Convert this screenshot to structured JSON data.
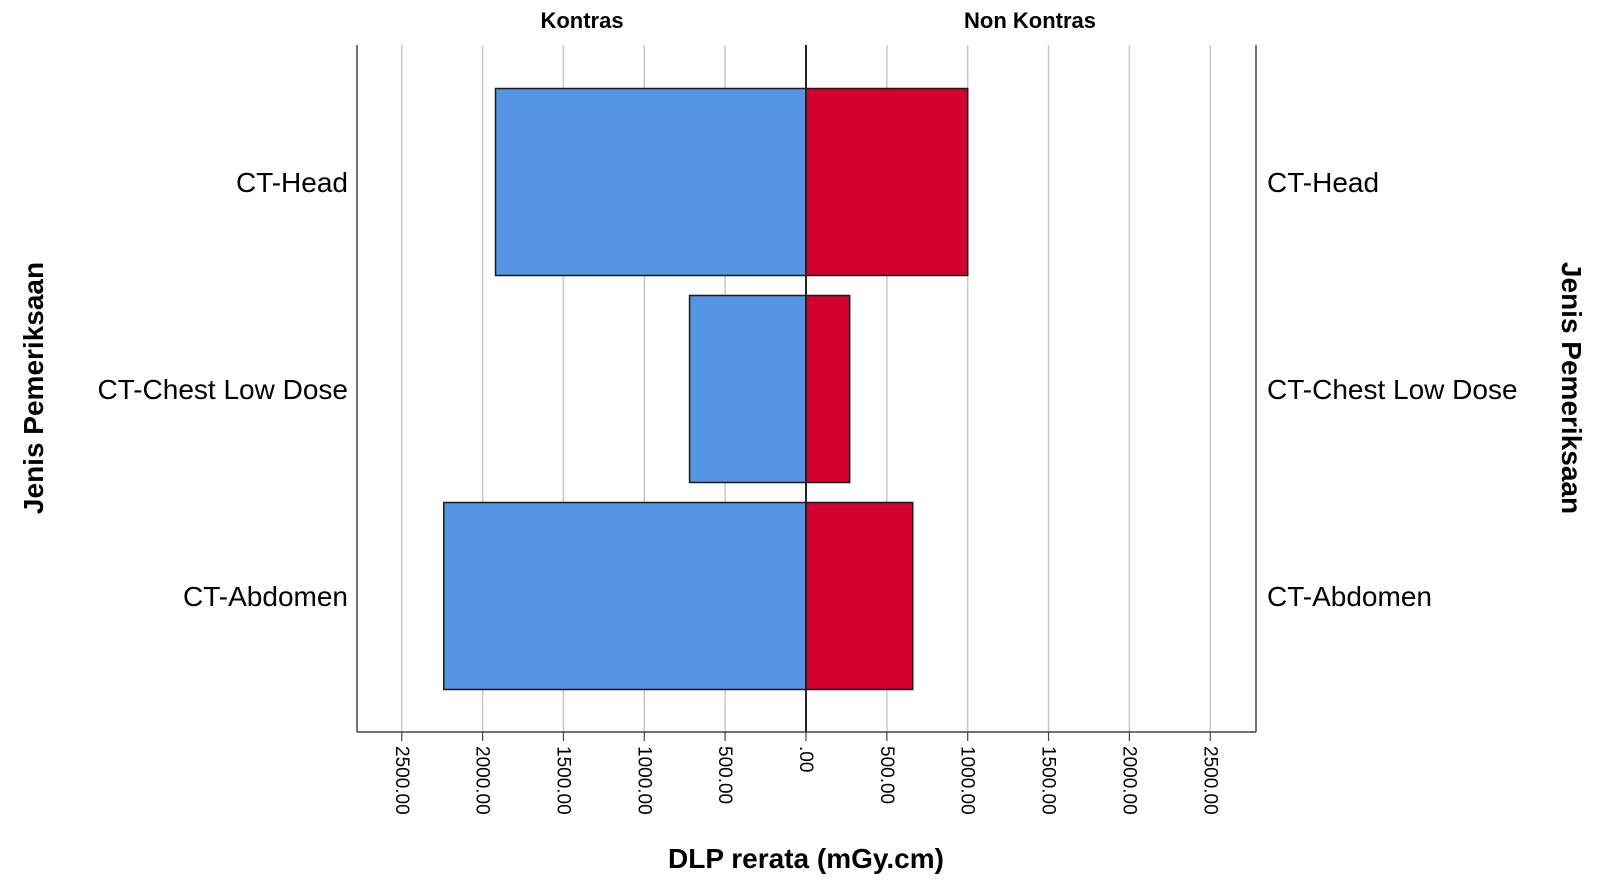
{
  "chart_data": {
    "type": "bar",
    "subtype": "population-pyramid",
    "categories": [
      "CT-Head",
      "CT-Chest Low Dose",
      "CT-Abdomen"
    ],
    "series": [
      {
        "name": "Kontras",
        "side": "left",
        "color": "#5595e3",
        "values": [
          1920,
          720,
          2240
        ]
      },
      {
        "name": "Non Kontras",
        "side": "right",
        "color": "#d3002f",
        "values": [
          1000,
          270,
          660
        ]
      }
    ],
    "xlabel": "DLP rerata (mGy.cm)",
    "ylabel_left": "Jenis Pemeriksaan",
    "ylabel_right": "Jenis Pemeriksaan",
    "xlim": [
      0,
      2800
    ],
    "ticks": [
      0,
      500,
      1000,
      1500,
      2000,
      2500
    ],
    "tick_labels": [
      ".00",
      "500.00",
      "1000.00",
      "1500.00",
      "2000.00",
      "2500.00"
    ],
    "grid": true,
    "legend": "none"
  }
}
